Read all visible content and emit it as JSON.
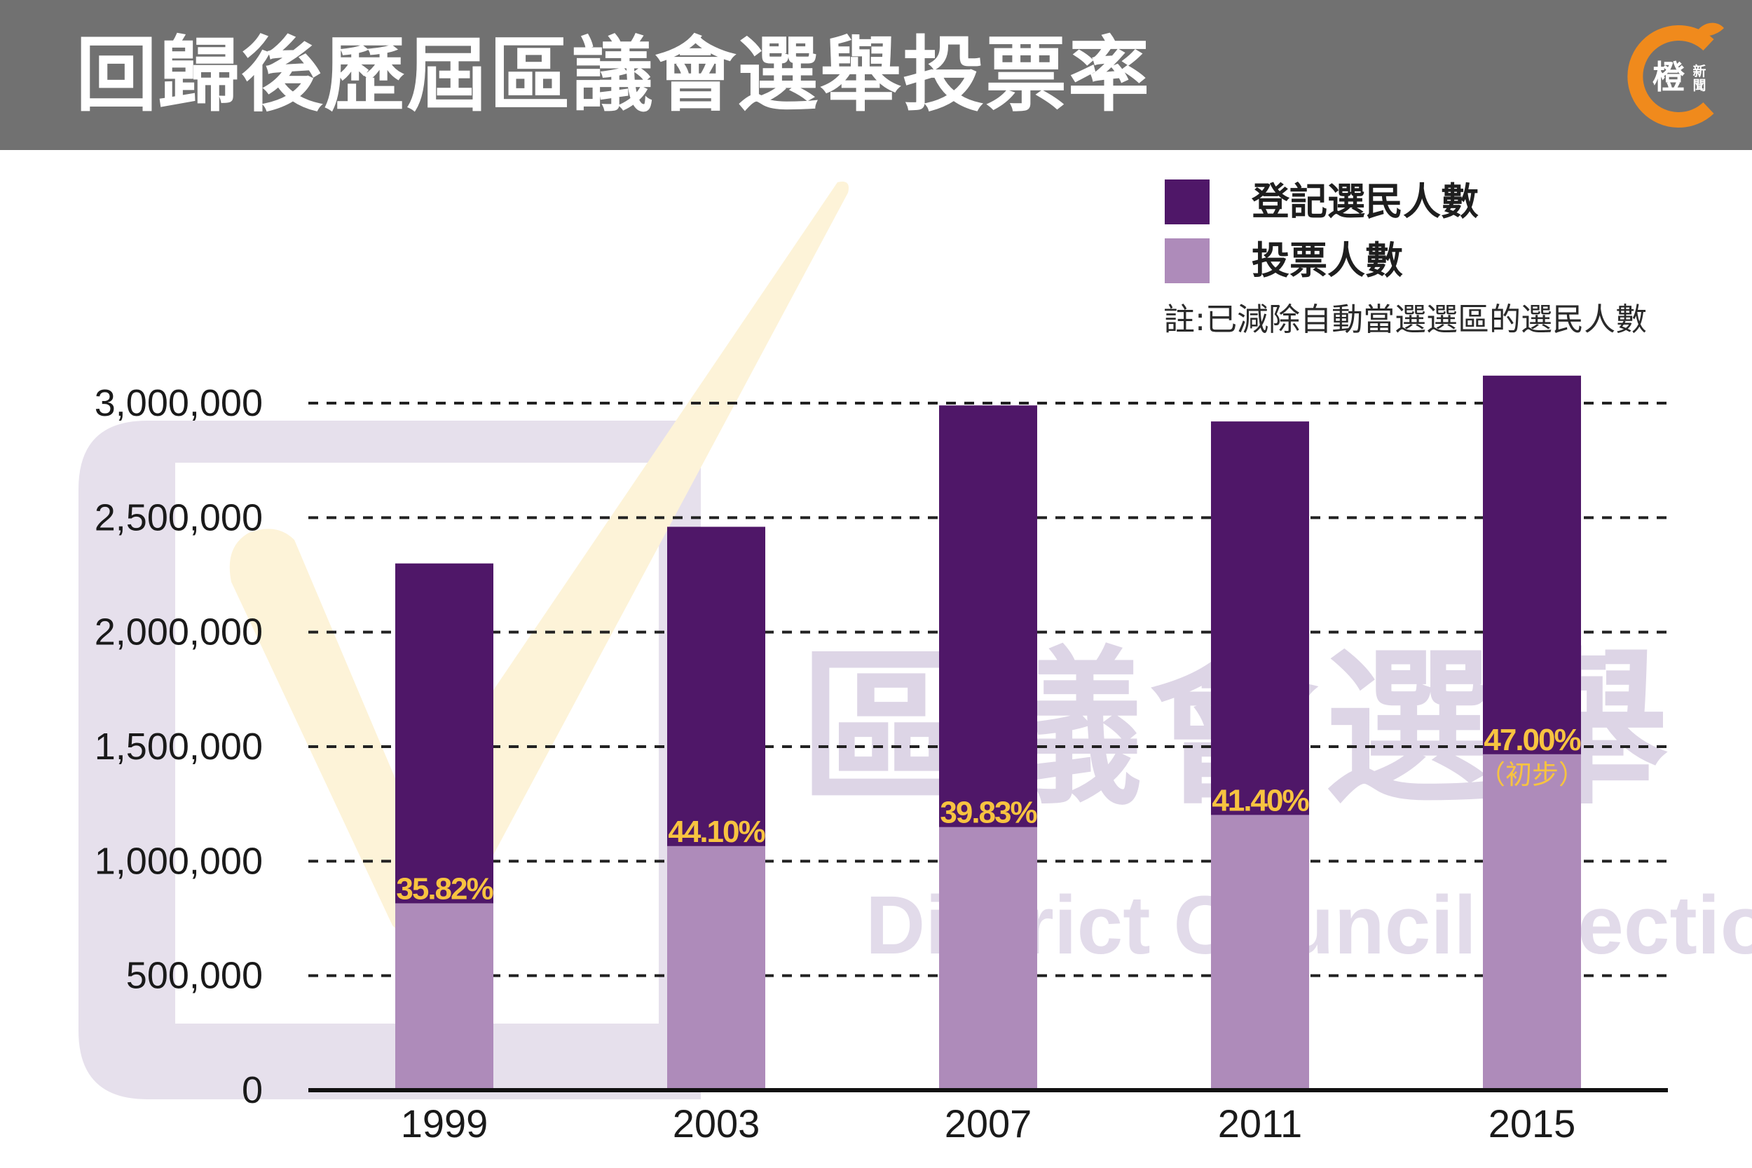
{
  "header": {
    "title": "回歸後歷屆區議會選舉投票率",
    "logo_main": "橙",
    "logo_side": "新聞"
  },
  "watermark": {
    "chinese": "區議會選舉",
    "english": "District Council Election"
  },
  "legend": [
    {
      "label": "登記選民人數",
      "color": "#4f1768"
    },
    {
      "label": "投票人數",
      "color": "#ae8bba"
    }
  ],
  "note": "註:已減除自動當選選區的選民人數",
  "colors": {
    "header_bg": "#717171",
    "registered": "#4f1768",
    "voted": "#ae8bba",
    "percent_label": "#f7c340"
  },
  "chart_data": {
    "type": "bar",
    "categories": [
      "1999",
      "2003",
      "2007",
      "2011",
      "2015"
    ],
    "series": [
      {
        "name": "登記選民人數",
        "values": [
          2300000,
          2460000,
          2990000,
          2920000,
          3120000
        ]
      },
      {
        "name": "投票人數",
        "values": [
          816000,
          1066000,
          1149000,
          1202000,
          1467000
        ]
      }
    ],
    "rates": [
      "35.82%",
      "44.10%",
      "39.83%",
      "41.40%",
      "47.00%"
    ],
    "rate_notes": [
      "",
      "",
      "",
      "",
      "（初步）"
    ],
    "y_ticks": [
      {
        "value": 0,
        "label": "0"
      },
      {
        "value": 500000,
        "label": "500,000"
      },
      {
        "value": 1000000,
        "label": "1,000,000"
      },
      {
        "value": 1500000,
        "label": "1,500,000"
      },
      {
        "value": 2000000,
        "label": "2,000,000"
      },
      {
        "value": 2500000,
        "label": "2,500,000"
      },
      {
        "value": 3000000,
        "label": "3,000,000"
      }
    ],
    "ylim": [
      0,
      3000000
    ],
    "grid": "dashed",
    "legend_position": "top-right",
    "overlay": true
  }
}
